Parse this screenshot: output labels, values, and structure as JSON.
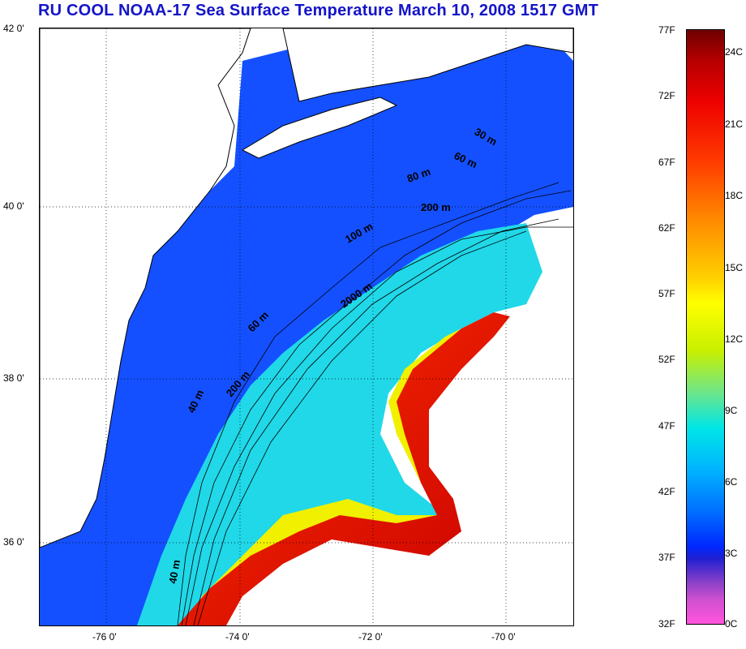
{
  "title": "RU COOL  NOAA-17 Sea Surface Temperature March 10, 2008 1517 GMT",
  "latitude_labels": [
    "42 0'",
    "40 0'",
    "38 0'",
    "36 0'"
  ],
  "longitude_labels": [
    "-76 0'",
    "-74 0'",
    "-72 0'",
    "-70 0'"
  ],
  "colorbar": {
    "fahrenheit": [
      "77F",
      "72F",
      "67F",
      "62F",
      "57F",
      "52F",
      "47F",
      "42F",
      "37F",
      "32F"
    ],
    "celsius": [
      "24C",
      "21C",
      "18C",
      "15C",
      "12C",
      "9C",
      "6C",
      "3C",
      "0C"
    ]
  },
  "isobath_labels": [
    "30 m",
    "60 m",
    "80 m",
    "200 m",
    "100 m",
    "2000 m",
    "60 m",
    "200 m",
    "40 m",
    "40 m"
  ],
  "colors": {
    "title": "#1414c8",
    "land": "#ffffff",
    "cold_shelf": "#0a3cff",
    "slope": "#00c8e6",
    "gulf_stream": "#e60000"
  }
}
